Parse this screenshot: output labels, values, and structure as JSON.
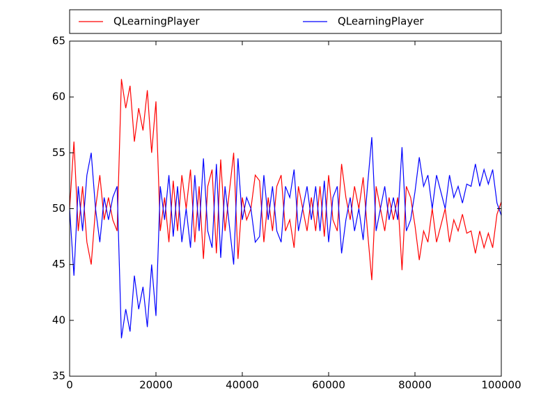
{
  "chart_data": {
    "type": "line",
    "x": [
      0,
      1000,
      2000,
      3000,
      4000,
      5000,
      6000,
      7000,
      8000,
      9000,
      10000,
      11000,
      12000,
      13000,
      14000,
      15000,
      16000,
      17000,
      18000,
      19000,
      20000,
      21000,
      22000,
      23000,
      24000,
      25000,
      26000,
      27000,
      28000,
      29000,
      30000,
      31000,
      32000,
      33000,
      34000,
      35000,
      36000,
      37000,
      38000,
      39000,
      40000,
      41000,
      42000,
      43000,
      44000,
      45000,
      46000,
      47000,
      48000,
      49000,
      50000,
      51000,
      52000,
      53000,
      54000,
      55000,
      56000,
      57000,
      58000,
      59000,
      60000,
      61000,
      62000,
      63000,
      64000,
      65000,
      66000,
      67000,
      68000,
      69000,
      70000,
      71000,
      72000,
      73000,
      74000,
      75000,
      76000,
      77000,
      78000,
      79000,
      80000,
      81000,
      82000,
      83000,
      84000,
      85000,
      86000,
      87000,
      88000,
      89000,
      90000,
      91000,
      92000,
      93000,
      94000,
      95000,
      96000,
      97000,
      98000,
      99000,
      100000
    ],
    "series": [
      {
        "name": "QLearningPlayer",
        "color": "#ff0000",
        "values": [
          50,
          56,
          48,
          52,
          47,
          45,
          50,
          53,
          49,
          51,
          49,
          48,
          61.6,
          59,
          61,
          56,
          59,
          57,
          60.6,
          55,
          59.6,
          48,
          51,
          47,
          52.5,
          48,
          53,
          50,
          53.5,
          47,
          52,
          45.5,
          52,
          53.5,
          46,
          54.4,
          48,
          51.5,
          55,
          45.5,
          51,
          49,
          50,
          53,
          52.5,
          47,
          51,
          48,
          52,
          53,
          48,
          49,
          46.5,
          52,
          50,
          48,
          51,
          48,
          52,
          47.5,
          53,
          49,
          48,
          54,
          51,
          49,
          52,
          50,
          52.8,
          48,
          43.6,
          52,
          50,
          48,
          51,
          49,
          51,
          44.5,
          52,
          51,
          48.5,
          45.4,
          48,
          47,
          50,
          47,
          48.5,
          50,
          47,
          49,
          48,
          49.5,
          47.8,
          48,
          46,
          48,
          46.5,
          47.8,
          46.5,
          49.5,
          50.6
        ]
      },
      {
        "name": "QLearningPlayer",
        "color": "#0000ff",
        "values": [
          50,
          44,
          52,
          48,
          53,
          55,
          50,
          47,
          51,
          49,
          51,
          52,
          38.4,
          41,
          39,
          44,
          41,
          43,
          39.4,
          45,
          40.4,
          52,
          49,
          53,
          47.5,
          52,
          47,
          50,
          46.5,
          53,
          48,
          54.5,
          48,
          46.5,
          54,
          45.6,
          52,
          48.5,
          45,
          54.5,
          49,
          51,
          50,
          47,
          47.5,
          53,
          49,
          52,
          48,
          47,
          52,
          51,
          53.5,
          48,
          50,
          52,
          49,
          52,
          48,
          52.5,
          47,
          51,
          52,
          46,
          49,
          51,
          48,
          50,
          47.2,
          52,
          56.4,
          48,
          50,
          52,
          49,
          51,
          49,
          55.5,
          48,
          49,
          51.5,
          54.6,
          52,
          53,
          50,
          53,
          51.5,
          50,
          53,
          51,
          52,
          50.5,
          52.2,
          52,
          54,
          52,
          53.5,
          52.2,
          53.5,
          50.5,
          49.4
        ]
      }
    ],
    "xlim": [
      0,
      100000
    ],
    "xticks": [
      0,
      20000,
      40000,
      60000,
      80000,
      100000
    ],
    "ylim": [
      35,
      65
    ],
    "yticks": [
      35,
      40,
      45,
      50,
      55,
      60,
      65
    ],
    "legend": "upper center"
  }
}
